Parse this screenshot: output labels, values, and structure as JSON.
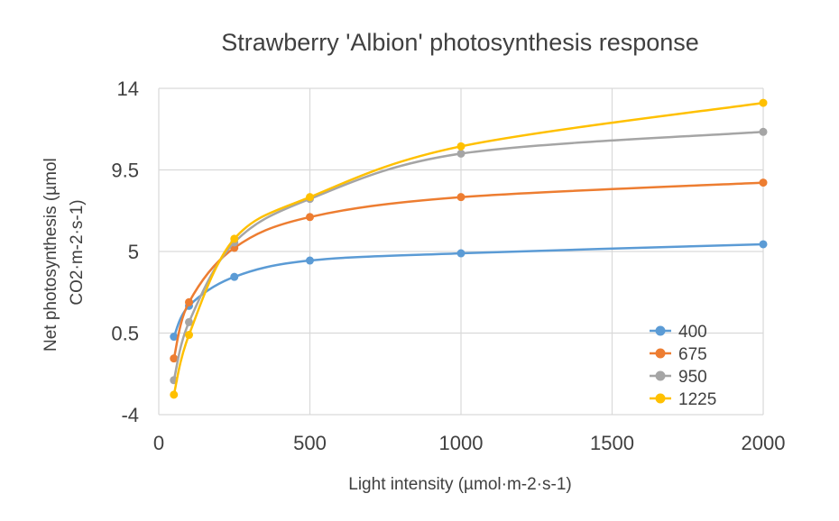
{
  "chart_data": {
    "type": "line",
    "title": "Strawberry 'Albion' photosynthesis response",
    "xlabel": "Light intensity (µmol·m-2·s-1)",
    "ylabel_lines": [
      "Net photosynthesis (µmol",
      "CO2·m-2·s-1)"
    ],
    "xlim": [
      0,
      2000
    ],
    "ylim": [
      -4,
      14
    ],
    "x_ticks": [
      "0",
      "500",
      "1000",
      "1500",
      "2000"
    ],
    "x_tick_values": [
      0,
      500,
      1000,
      1500,
      2000
    ],
    "y_ticks": [
      "14",
      "9.5",
      "5",
      "0.5",
      "-4"
    ],
    "y_tick_values": [
      14,
      9.5,
      5,
      0.5,
      -4
    ],
    "grid": true,
    "legend_position": "bottom-right",
    "x": [
      50,
      100,
      250,
      500,
      1000,
      2000
    ],
    "series": [
      {
        "name": "400",
        "color": "#5b9bd5",
        "values": [
          0.3,
          2.0,
          3.6,
          4.5,
          4.9,
          5.4
        ]
      },
      {
        "name": "675",
        "color": "#ed7d31",
        "values": [
          -0.9,
          2.2,
          5.2,
          6.9,
          8.0,
          8.8
        ]
      },
      {
        "name": "950",
        "color": "#a5a5a5",
        "values": [
          -2.1,
          1.1,
          5.5,
          7.9,
          10.4,
          11.6
        ]
      },
      {
        "name": "1225",
        "color": "#ffc000",
        "values": [
          -2.9,
          0.4,
          5.7,
          8.0,
          10.8,
          13.2
        ]
      }
    ]
  }
}
